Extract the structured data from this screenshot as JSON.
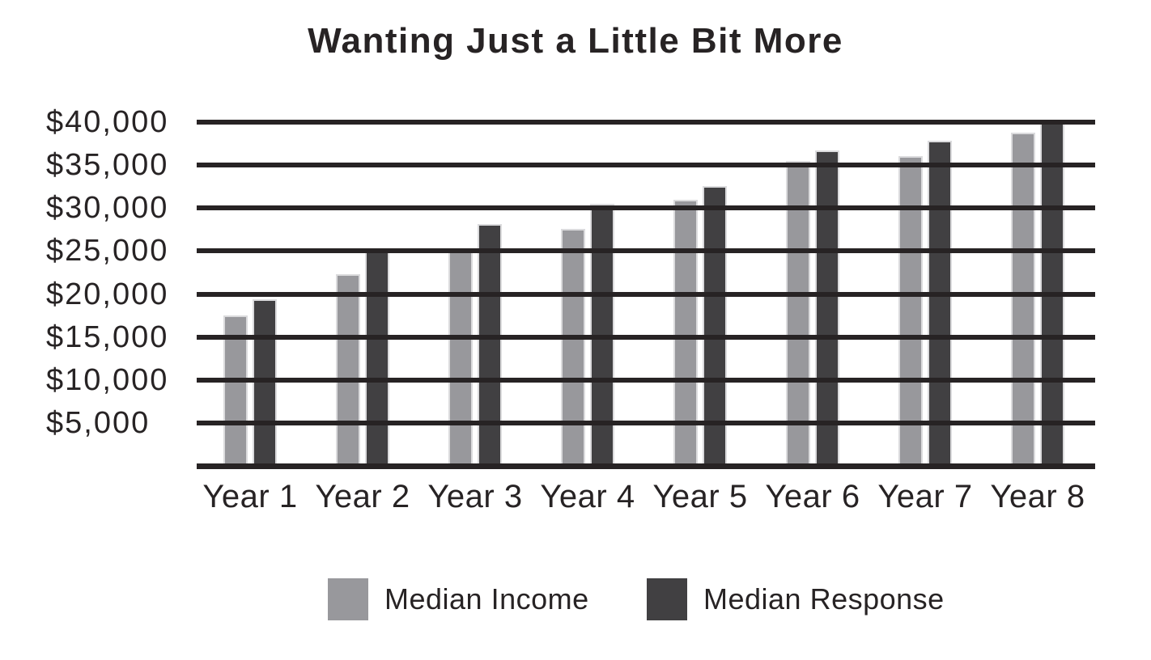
{
  "chart_data": {
    "type": "bar",
    "title": "Wanting Just a Little Bit More",
    "categories": [
      "Year 1",
      "Year 2",
      "Year 3",
      "Year 4",
      "Year 5",
      "Year 6",
      "Year 7",
      "Year 8"
    ],
    "series": [
      {
        "name": "Median Income",
        "color": "#98989c",
        "values": [
          17500,
          22300,
          24900,
          27600,
          31000,
          35500,
          36000,
          38800
        ]
      },
      {
        "name": "Median Response",
        "color": "#414042",
        "values": [
          19400,
          25000,
          28100,
          30500,
          32600,
          36700,
          37800,
          40000
        ]
      }
    ],
    "ylim": [
      0,
      40000
    ],
    "ytick_step": 5000,
    "ytick_labels_top_to_bottom": [
      "$40,000",
      "$35,000",
      "$30,000",
      "$25,000",
      "$20,000",
      "$15,000",
      "$10,000",
      "$5,000"
    ],
    "grid": true,
    "gridline_color": "#272324",
    "axis_color": "#272324",
    "legend_position": "bottom"
  }
}
